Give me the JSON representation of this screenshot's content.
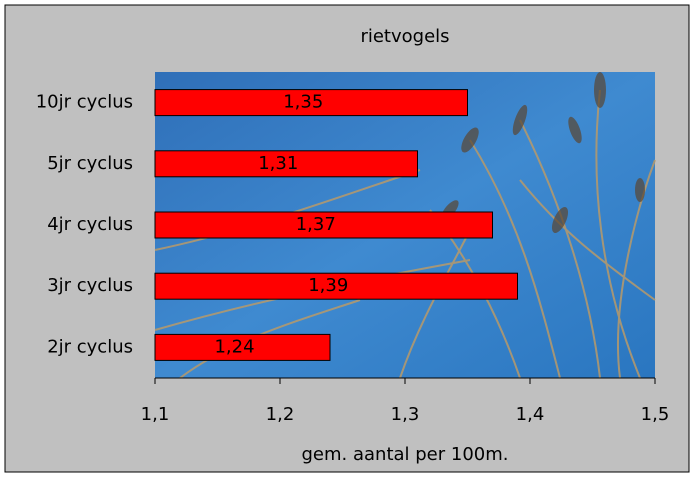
{
  "chart_data": {
    "type": "bar",
    "orientation": "horizontal",
    "title": "rietvogels",
    "x_label": "gem. aantal per 100m.",
    "categories": [
      "10jr cyclus",
      "5jr cyclus",
      "4jr cyclus",
      "3jr cyclus",
      "2jr cyclus"
    ],
    "values": [
      1.35,
      1.31,
      1.37,
      1.39,
      1.24
    ],
    "value_labels": [
      "1,35",
      "1,31",
      "1,37",
      "1,39",
      "1,24"
    ],
    "color": "#ff0000",
    "xlim": [
      1.1,
      1.5
    ],
    "xticks": [
      {
        "value": 1.1,
        "label": "1,1"
      },
      {
        "value": 1.2,
        "label": "1,2"
      },
      {
        "value": 1.3,
        "label": "1,3"
      },
      {
        "value": 1.4,
        "label": "1,4"
      },
      {
        "value": 1.5,
        "label": "1,5"
      }
    ]
  }
}
